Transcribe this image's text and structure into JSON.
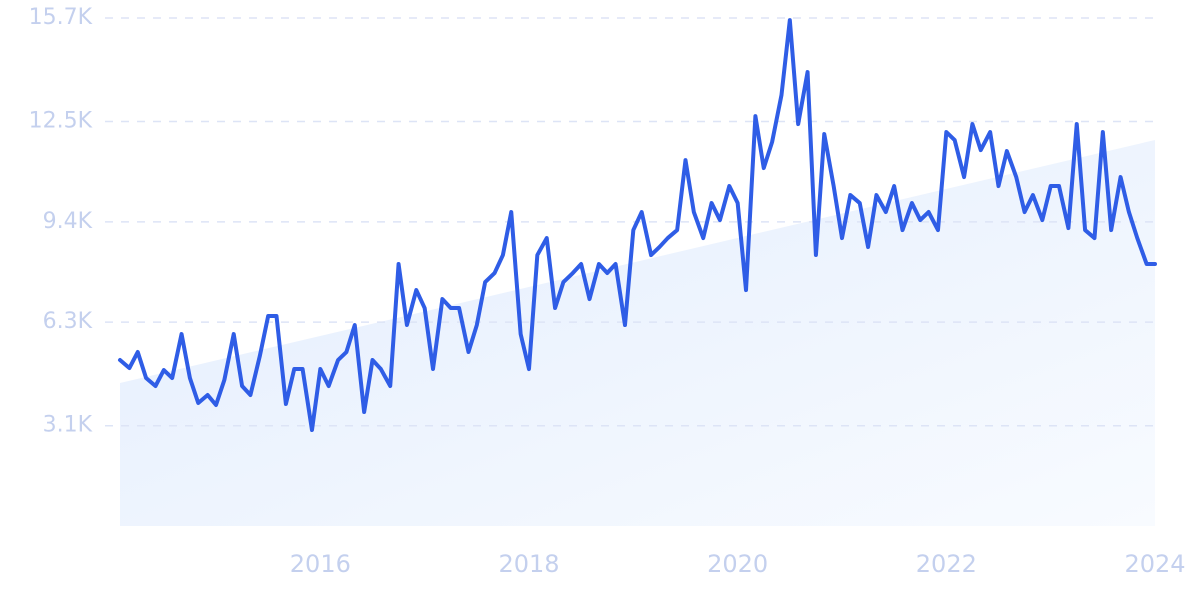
{
  "chart_data": {
    "type": "line",
    "x": [
      2014.08,
      2014.17,
      2014.25,
      2014.33,
      2014.42,
      2014.5,
      2014.58,
      2014.67,
      2014.75,
      2014.83,
      2014.92,
      2015.0,
      2015.08,
      2015.17,
      2015.25,
      2015.33,
      2015.42,
      2015.5,
      2015.58,
      2015.67,
      2015.75,
      2015.83,
      2015.92,
      2016.0,
      2016.08,
      2016.17,
      2016.25,
      2016.33,
      2016.42,
      2016.5,
      2016.58,
      2016.67,
      2016.75,
      2016.83,
      2016.92,
      2017.0,
      2017.08,
      2017.17,
      2017.25,
      2017.33,
      2017.42,
      2017.5,
      2017.58,
      2017.67,
      2017.75,
      2017.83,
      2017.92,
      2018.0,
      2018.08,
      2018.17,
      2018.25,
      2018.33,
      2018.42,
      2018.5,
      2018.58,
      2018.67,
      2018.75,
      2018.83,
      2018.92,
      2019.0,
      2019.08,
      2019.17,
      2019.25,
      2019.33,
      2019.42,
      2019.5,
      2019.58,
      2019.67,
      2019.75,
      2019.83,
      2019.92,
      2020.0,
      2020.08,
      2020.17,
      2020.25,
      2020.33,
      2020.42,
      2020.5,
      2020.58,
      2020.67,
      2020.75,
      2020.83,
      2020.92,
      2021.0,
      2021.08,
      2021.17,
      2021.25,
      2021.33,
      2021.42,
      2021.5,
      2021.58,
      2021.67,
      2021.75,
      2021.83,
      2021.92,
      2022.0,
      2022.08,
      2022.17,
      2022.25,
      2022.33,
      2022.42,
      2022.5,
      2022.58,
      2022.67,
      2022.75,
      2022.83,
      2022.92,
      2023.0,
      2023.08,
      2023.17,
      2023.25,
      2023.33,
      2023.42,
      2023.5,
      2023.58,
      2023.67,
      2023.75,
      2023.83,
      2023.92,
      2024.0
    ],
    "series": [
      {
        "color": "#2f5de6",
        "values": [
          5130,
          4882,
          5377,
          4573,
          4326,
          4820,
          4573,
          5933,
          4573,
          3801,
          4048,
          3739,
          4511,
          5933,
          4326,
          4048,
          5253,
          6489,
          6489,
          3770,
          4851,
          4851,
          2966,
          4851,
          4326,
          5130,
          5377,
          6211,
          3523,
          5130,
          4851,
          4326,
          8096,
          6211,
          7292,
          6736,
          4851,
          7014,
          6736,
          6736,
          5377,
          6211,
          7540,
          7818,
          8374,
          9703,
          5933,
          4851,
          8374,
          8899,
          6736,
          7540,
          7818,
          8096,
          7014,
          8096,
          7818,
          8096,
          6211,
          9146,
          9703,
          8374,
          8621,
          8899,
          9146,
          11309,
          9703,
          8899,
          9981,
          9455,
          10506,
          9981,
          7292,
          12669,
          11062,
          11866,
          13318,
          15635,
          12422,
          14029,
          8374,
          12113,
          10506,
          8899,
          10228,
          9981,
          8621,
          10228,
          9703,
          10506,
          9146,
          9981,
          9455,
          9703,
          9146,
          12175,
          11927,
          10784,
          12422,
          11618,
          12175,
          10506,
          11588,
          10784,
          9703,
          10228,
          9455,
          10506,
          10506,
          9208,
          12422,
          9146,
          8899,
          12175,
          9146,
          10784,
          9703,
          8899,
          8096,
          8096
        ]
      }
    ],
    "trend": {
      "x": [
        2014.08,
        2024
      ],
      "values": [
        4420,
        11930
      ],
      "color": "#e3edfd"
    },
    "xlim": [
      2014.08,
      2024
    ],
    "xticks": [
      2016,
      2018,
      2020,
      2022,
      2024
    ],
    "ylim": [
      0,
      15700
    ],
    "yticks": [
      {
        "value": 3100,
        "label": "3.1K"
      },
      {
        "value": 6300,
        "label": "6.3K"
      },
      {
        "value": 9400,
        "label": "9.4K"
      },
      {
        "value": 12500,
        "label": "12.5K"
      },
      {
        "value": 15700,
        "label": "15.7K"
      }
    ],
    "grid": true
  }
}
